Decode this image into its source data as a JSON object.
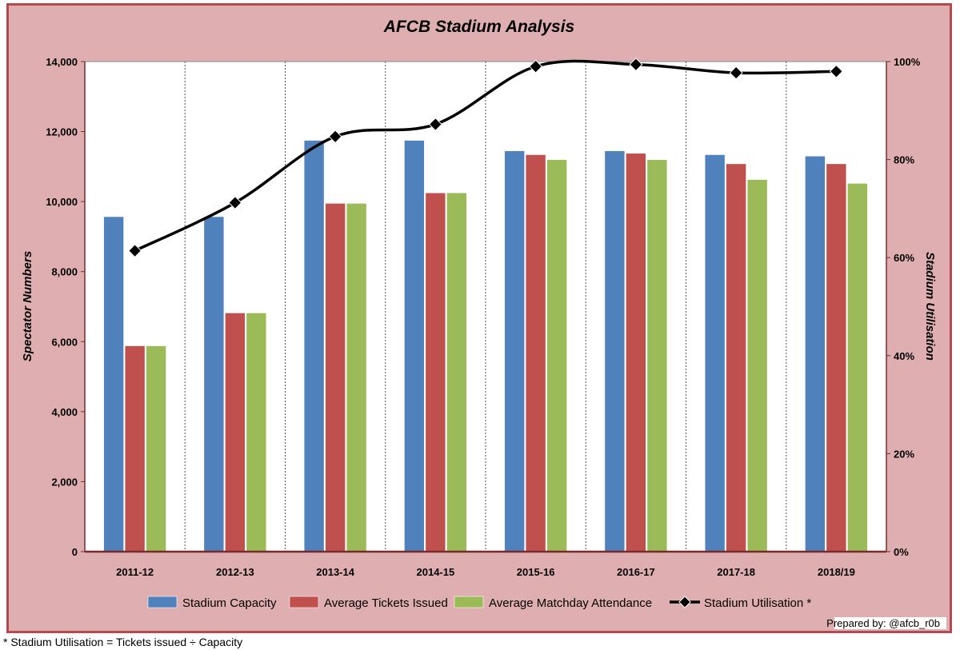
{
  "chart_data": {
    "type": "bar",
    "title": "AFCB Stadium Analysis",
    "ylabel": "Spectator Numbers",
    "y2label": "Stadium Utilisation",
    "ylim": [
      0,
      14000
    ],
    "y2lim": [
      0,
      1
    ],
    "yticks": [
      "0",
      "2,000",
      "4,000",
      "6,000",
      "8,000",
      "10,000",
      "12,000",
      "14,000"
    ],
    "y2ticks": [
      "0%",
      "20%",
      "40%",
      "60%",
      "80%",
      "100%"
    ],
    "categories": [
      "2011-12",
      "2012-13",
      "2013-14",
      "2014-15",
      "2015-16",
      "2016-17",
      "2017-18",
      "2018/19"
    ],
    "series": [
      {
        "name": "Stadium Capacity",
        "type": "bar",
        "color": "#4f81bd",
        "values": [
          9570,
          9570,
          11750,
          11750,
          11450,
          11450,
          11340,
          11300
        ]
      },
      {
        "name": "Average Tickets Issued",
        "type": "bar",
        "color": "#c0504d",
        "values": [
          5880,
          6820,
          9950,
          10250,
          11340,
          11380,
          11080,
          11080
        ]
      },
      {
        "name": "Average Matchday Attendance",
        "type": "bar",
        "color": "#9bbb59",
        "values": [
          5880,
          6820,
          9950,
          10250,
          11200,
          11200,
          10630,
          10520
        ]
      },
      {
        "name": "Stadium Utilisation *",
        "type": "line",
        "axis": "right",
        "color": "#000000",
        "values": [
          0.614,
          0.712,
          0.847,
          0.872,
          0.99,
          0.994,
          0.977,
          0.98
        ]
      }
    ],
    "grid": "vertical dotted",
    "legend_position": "bottom"
  },
  "credit": "Prepared by: @afcb_r0b",
  "footnote": "* Stadium Utilisation = Tickets issued ÷ Capacity"
}
